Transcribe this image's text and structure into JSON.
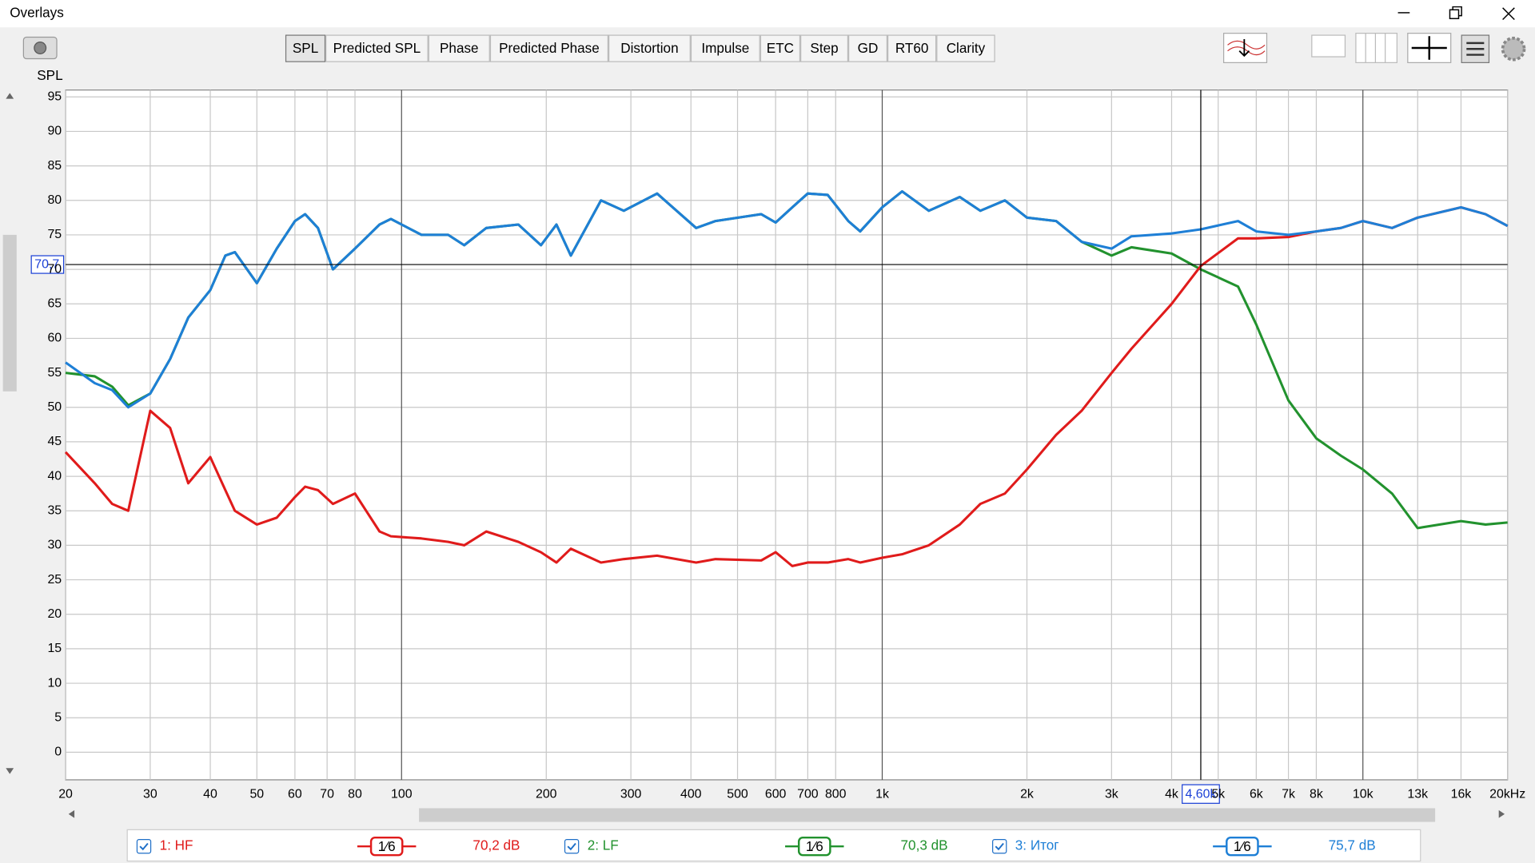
{
  "window": {
    "title": "Overlays",
    "tabs": [
      "SPL",
      "Predicted SPL",
      "Phase",
      "Predicted Phase",
      "Distortion",
      "Impulse",
      "ETC",
      "Step",
      "GD",
      "RT60",
      "Clarity"
    ],
    "active_tab": 0
  },
  "chart_data": {
    "type": "line",
    "y_label": "SPL",
    "x_scale": "log",
    "xlim": [
      20,
      20000
    ],
    "ylim": [
      -4,
      96
    ],
    "xticks": [
      20,
      30,
      40,
      50,
      60,
      70,
      80,
      100,
      200,
      300,
      400,
      500,
      600,
      700,
      800,
      {
        "value": 1000,
        "label": "1k"
      },
      {
        "value": 2000,
        "label": "2k"
      },
      {
        "value": 3000,
        "label": "3k"
      },
      {
        "value": 4000,
        "label": "4k"
      },
      {
        "value": 5000,
        "label": "5k"
      },
      {
        "value": 6000,
        "label": "6k"
      },
      {
        "value": 7000,
        "label": "7k"
      },
      {
        "value": 8000,
        "label": "8k"
      },
      {
        "value": 10000,
        "label": "10k"
      },
      {
        "value": 13000,
        "label": "13k"
      },
      {
        "value": 16000,
        "label": "16k"
      },
      {
        "value": 20000,
        "label": "20kHz"
      }
    ],
    "yticks": [
      0,
      5,
      10,
      15,
      20,
      25,
      30,
      35,
      40,
      45,
      50,
      55,
      60,
      65,
      70,
      75,
      80,
      85,
      90,
      95
    ],
    "grid": true,
    "cursor": {
      "x": {
        "value": 4600,
        "label": "4,60k"
      },
      "y": {
        "value": 70.7,
        "label": "70,7"
      }
    },
    "x": [
      20,
      23,
      25,
      27,
      30,
      33,
      36,
      40,
      43,
      45,
      50,
      55,
      60,
      63,
      67,
      72,
      80,
      90,
      95,
      110,
      125,
      135,
      150,
      175,
      195,
      210,
      225,
      260,
      290,
      340,
      410,
      450,
      560,
      600,
      650,
      700,
      770,
      850,
      900,
      1000,
      1100,
      1250,
      1450,
      1600,
      1800,
      2000,
      2300,
      2600,
      3000,
      3300,
      4000,
      4600,
      5500,
      6000,
      7000,
      8000,
      9000,
      10000,
      11500,
      13000,
      16000,
      18000,
      20000
    ],
    "series": [
      {
        "name": "1: HF",
        "color": "#e01b1b",
        "smoothing": "1⁄6",
        "cursor_value": {
          "value": 70.2,
          "label": "70,2 dB"
        },
        "values": [
          43.5,
          39,
          36,
          35,
          49.5,
          47,
          39,
          42.8,
          38,
          35,
          33,
          34,
          37,
          38.5,
          38,
          36,
          37.5,
          32,
          31.3,
          31,
          30.5,
          30,
          32,
          30.5,
          29,
          27.5,
          29.5,
          27.5,
          28,
          28.5,
          27.5,
          28,
          27.8,
          29,
          27,
          27.5,
          27.5,
          28,
          27.5,
          28.2,
          28.7,
          30,
          33,
          36,
          37.5,
          41,
          46,
          49.5,
          55,
          58.5,
          65,
          70.5,
          74.5,
          74.5,
          74.7,
          75.5,
          76,
          77,
          76,
          77.5,
          79,
          78,
          76.3
        ]
      },
      {
        "name": "2: LF",
        "color": "#22922e",
        "smoothing": "1⁄6",
        "cursor_value": {
          "value": 70.3,
          "label": "70,3 dB"
        },
        "values": [
          55,
          54.5,
          53,
          50.3,
          52,
          57,
          63,
          67,
          72,
          72.5,
          68,
          73,
          77,
          78,
          76,
          70,
          73,
          76.5,
          77.3,
          75,
          75,
          73.5,
          76,
          76.5,
          73.5,
          76.5,
          72,
          80,
          78.5,
          81,
          76,
          77,
          78,
          76.8,
          79,
          81,
          80.8,
          77,
          75.5,
          79,
          81.3,
          78.5,
          80.5,
          78.5,
          80,
          77.5,
          77,
          74,
          72,
          73.2,
          72.3,
          70,
          67.5,
          62,
          51,
          45.5,
          43,
          41,
          37.5,
          32.5,
          33.5,
          33,
          33.3
        ]
      },
      {
        "name": "3: Итог",
        "color": "#1e7fd6",
        "smoothing": "1⁄6",
        "cursor_value": {
          "value": 75.7,
          "label": "75,7 dB"
        },
        "values": [
          56.5,
          53.5,
          52.5,
          50,
          52,
          57,
          63,
          67,
          72,
          72.5,
          68,
          73,
          77,
          78,
          76,
          70,
          73,
          76.5,
          77.3,
          75,
          75,
          73.5,
          76,
          76.5,
          73.5,
          76.5,
          72,
          80,
          78.5,
          81,
          76,
          77,
          78,
          76.8,
          79,
          81,
          80.8,
          77,
          75.5,
          79,
          81.3,
          78.5,
          80.5,
          78.5,
          80,
          77.5,
          77,
          74,
          73,
          74.8,
          75.2,
          75.8,
          77,
          75.5,
          75,
          75.5,
          76,
          77,
          76,
          77.5,
          79,
          78,
          76.3
        ]
      }
    ]
  }
}
